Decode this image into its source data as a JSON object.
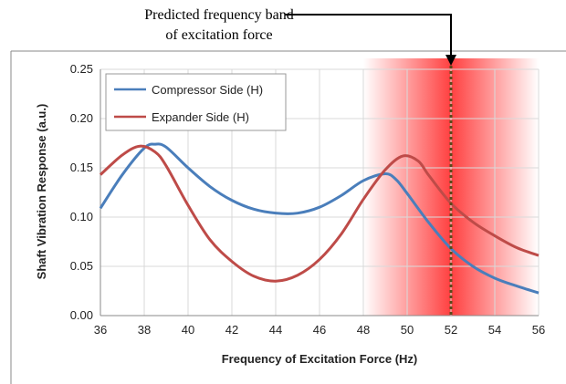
{
  "annotation": {
    "line1": "Predicted frequency band",
    "line2": "of excitation force"
  },
  "chart_data": {
    "type": "line",
    "xlabel": "Frequency of Excitation Force (Hz)",
    "ylabel": "Shaft Vibration Response (a.u.)",
    "xlim": [
      36,
      56
    ],
    "ylim": [
      0,
      0.25
    ],
    "xticks": [
      "36",
      "38",
      "40",
      "42",
      "44",
      "46",
      "48",
      "50",
      "52",
      "54",
      "56"
    ],
    "yticks": [
      "0.00",
      "0.05",
      "0.10",
      "0.15",
      "0.20",
      "0.25"
    ],
    "grid": true,
    "legend_position": "top-left",
    "highlight_band": {
      "center": 52,
      "range": [
        48,
        56
      ],
      "color": "#ff0000"
    },
    "series": [
      {
        "name": "Compressor Side (H)",
        "color": "#4a7ebb",
        "x": [
          36,
          37,
          38,
          38.5,
          39,
          40,
          41,
          42,
          43,
          44,
          45,
          46,
          47,
          48,
          49,
          49.5,
          50,
          51,
          52,
          53,
          54,
          55,
          56
        ],
        "values": [
          0.109,
          0.143,
          0.17,
          0.174,
          0.171,
          0.15,
          0.131,
          0.117,
          0.108,
          0.104,
          0.104,
          0.11,
          0.122,
          0.137,
          0.144,
          0.138,
          0.124,
          0.094,
          0.068,
          0.05,
          0.038,
          0.03,
          0.023
        ]
      },
      {
        "name": "Expander Side (H)",
        "color": "#be4b48",
        "x": [
          36,
          37,
          37.8,
          38.5,
          39,
          40,
          41,
          42,
          43,
          44,
          45,
          46,
          47,
          48,
          49,
          49.8,
          50.5,
          51,
          52,
          53,
          54,
          55,
          56
        ],
        "values": [
          0.143,
          0.163,
          0.172,
          0.166,
          0.152,
          0.112,
          0.077,
          0.055,
          0.04,
          0.035,
          0.041,
          0.057,
          0.083,
          0.118,
          0.148,
          0.162,
          0.157,
          0.142,
          0.114,
          0.095,
          0.081,
          0.069,
          0.061
        ]
      }
    ]
  }
}
